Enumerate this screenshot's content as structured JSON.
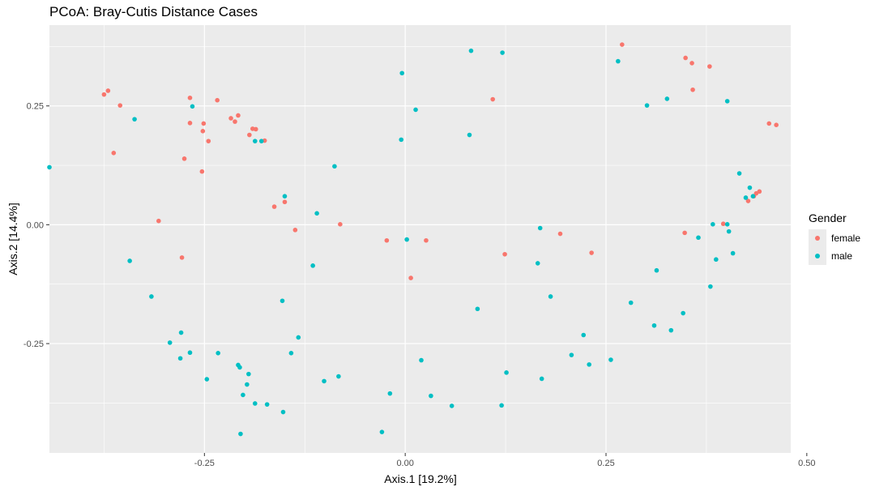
{
  "chart_data": {
    "type": "scatter",
    "title": "PCoA: Bray-Cutis Distance Cases",
    "xlabel": "Axis.1   [19.2%]",
    "ylabel": "Axis.2   [14.4%]",
    "xlim": [
      -0.443,
      0.48
    ],
    "ylim": [
      -0.48,
      0.42
    ],
    "x_ticks": [
      -0.25,
      0.0,
      0.25,
      0.5
    ],
    "x_tick_labels": [
      "-0.25",
      "0.00",
      "0.25",
      "0.50"
    ],
    "y_ticks": [
      -0.25,
      0.0,
      0.25
    ],
    "y_tick_labels": [
      "-0.25",
      "0.00",
      "0.25"
    ],
    "grid": true,
    "legend_position": "right",
    "legend_title": "Gender",
    "series": [
      {
        "name": "female",
        "color": "#F8766D",
        "points": [
          [
            0.27,
            0.379
          ],
          [
            -0.37,
            0.282
          ],
          [
            -0.375,
            0.274
          ],
          [
            -0.355,
            0.251
          ],
          [
            -0.363,
            0.151
          ],
          [
            -0.268,
            0.267
          ],
          [
            -0.234,
            0.262
          ],
          [
            -0.268,
            0.214
          ],
          [
            -0.251,
            0.213
          ],
          [
            -0.252,
            0.197
          ],
          [
            -0.245,
            0.176
          ],
          [
            -0.275,
            0.139
          ],
          [
            -0.253,
            0.112
          ],
          [
            -0.307,
            0.008
          ],
          [
            -0.278,
            -0.069
          ],
          [
            -0.217,
            0.224
          ],
          [
            -0.208,
            0.23
          ],
          [
            -0.212,
            0.217
          ],
          [
            -0.19,
            0.202
          ],
          [
            -0.186,
            0.201
          ],
          [
            -0.194,
            0.189
          ],
          [
            -0.175,
            0.177
          ],
          [
            -0.15,
            0.048
          ],
          [
            -0.163,
            0.038
          ],
          [
            -0.137,
            -0.011
          ],
          [
            -0.081,
            0.001
          ],
          [
            -0.023,
            -0.033
          ],
          [
            0.026,
            -0.033
          ],
          [
            0.007,
            -0.112
          ],
          [
            0.109,
            0.264
          ],
          [
            0.124,
            -0.062
          ],
          [
            0.193,
            -0.019
          ],
          [
            0.232,
            -0.059
          ],
          [
            0.349,
            0.351
          ],
          [
            0.357,
            0.34
          ],
          [
            0.379,
            0.333
          ],
          [
            0.358,
            0.284
          ],
          [
            0.453,
            0.213
          ],
          [
            0.462,
            0.21
          ],
          [
            0.396,
            0.002
          ],
          [
            0.348,
            -0.017
          ],
          [
            0.427,
            0.05
          ],
          [
            0.434,
            0.06
          ],
          [
            0.437,
            0.066
          ],
          [
            0.441,
            0.07
          ]
        ]
      },
      {
        "name": "male",
        "color": "#00BFC4",
        "points": [
          [
            0.082,
            0.366
          ],
          [
            0.121,
            0.362
          ],
          [
            -0.004,
            0.319
          ],
          [
            0.013,
            0.242
          ],
          [
            0.08,
            0.189
          ],
          [
            -0.005,
            0.179
          ],
          [
            0.265,
            0.344
          ],
          [
            0.301,
            0.251
          ],
          [
            0.326,
            0.265
          ],
          [
            0.401,
            0.26
          ],
          [
            -0.443,
            0.121
          ],
          [
            -0.337,
            0.222
          ],
          [
            -0.265,
            0.249
          ],
          [
            -0.187,
            0.176
          ],
          [
            -0.179,
            0.176
          ],
          [
            -0.088,
            0.123
          ],
          [
            -0.15,
            0.06
          ],
          [
            -0.11,
            0.024
          ],
          [
            -0.343,
            -0.076
          ],
          [
            -0.316,
            -0.151
          ],
          [
            -0.115,
            -0.086
          ],
          [
            -0.153,
            -0.16
          ],
          [
            0.002,
            -0.031
          ],
          [
            0.168,
            -0.007
          ],
          [
            0.165,
            -0.081
          ],
          [
            0.181,
            -0.151
          ],
          [
            0.09,
            -0.177
          ],
          [
            0.416,
            0.108
          ],
          [
            0.429,
            0.078
          ],
          [
            0.424,
            0.057
          ],
          [
            0.433,
            0.06
          ],
          [
            0.383,
            0.001
          ],
          [
            0.401,
            0.001
          ],
          [
            0.365,
            -0.027
          ],
          [
            0.403,
            -0.014
          ],
          [
            0.408,
            -0.06
          ],
          [
            0.387,
            -0.073
          ],
          [
            0.313,
            -0.096
          ],
          [
            0.38,
            -0.13
          ],
          [
            0.281,
            -0.164
          ],
          [
            0.346,
            -0.186
          ],
          [
            0.31,
            -0.212
          ],
          [
            0.331,
            -0.222
          ],
          [
            -0.293,
            -0.248
          ],
          [
            -0.279,
            -0.227
          ],
          [
            -0.28,
            -0.281
          ],
          [
            -0.268,
            -0.269
          ],
          [
            -0.233,
            -0.27
          ],
          [
            -0.247,
            -0.325
          ],
          [
            -0.206,
            -0.3
          ],
          [
            -0.208,
            -0.295
          ],
          [
            -0.195,
            -0.314
          ],
          [
            -0.197,
            -0.336
          ],
          [
            -0.202,
            -0.358
          ],
          [
            -0.187,
            -0.376
          ],
          [
            -0.172,
            -0.378
          ],
          [
            -0.152,
            -0.394
          ],
          [
            -0.205,
            -0.44
          ],
          [
            -0.142,
            -0.27
          ],
          [
            -0.133,
            -0.237
          ],
          [
            -0.101,
            -0.329
          ],
          [
            -0.083,
            -0.319
          ],
          [
            -0.019,
            -0.355
          ],
          [
            -0.029,
            -0.436
          ],
          [
            0.02,
            -0.285
          ],
          [
            0.032,
            -0.36
          ],
          [
            0.058,
            -0.381
          ],
          [
            0.12,
            -0.38
          ],
          [
            0.126,
            -0.311
          ],
          [
            0.17,
            -0.324
          ],
          [
            0.207,
            -0.274
          ],
          [
            0.222,
            -0.232
          ],
          [
            0.229,
            -0.294
          ],
          [
            0.256,
            -0.284
          ]
        ]
      }
    ]
  }
}
